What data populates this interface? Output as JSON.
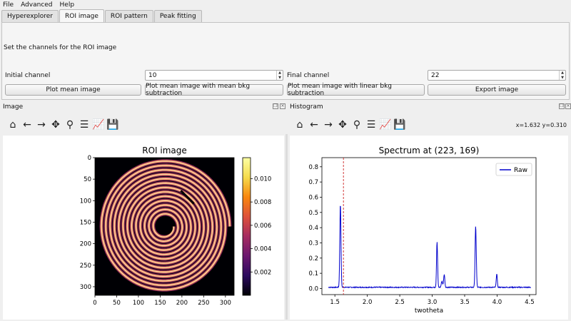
{
  "menu": {
    "items": [
      "File",
      "Advanced",
      "Help"
    ]
  },
  "tabs": [
    {
      "label": "Hyperexplorer",
      "active": false
    },
    {
      "label": "ROI image",
      "active": true
    },
    {
      "label": "ROI pattern",
      "active": false
    },
    {
      "label": "Peak fitting",
      "active": false
    }
  ],
  "roi_panel": {
    "instruction": "Set the channels for the ROI image",
    "initial_label": "Initial channel",
    "initial_value": "10",
    "final_label": "Final channel",
    "final_value": "22",
    "buttons": [
      "Plot mean image",
      "Plot mean image with mean bkg subtraction",
      "Plot mean image with linear bkg subtraction",
      "Export image"
    ]
  },
  "image_dock": {
    "title": "Image"
  },
  "histogram_dock": {
    "title": "Histogram",
    "coords": "x=1.632 y=0.310"
  },
  "toolbar_icons": [
    "home-icon",
    "back-icon",
    "forward-icon",
    "pan-icon",
    "zoom-icon",
    "configure-icon",
    "axes-icon",
    "save-icon"
  ],
  "colors": {
    "colormap": [
      "#000004",
      "#2c0a5e",
      "#6b176e",
      "#a52c60",
      "#dd513a",
      "#f8870e",
      "#f5db4b",
      "#fcffa4"
    ],
    "raw_line": "#0000cc",
    "cursor_line": "#cc2222"
  },
  "chart_data": [
    {
      "type": "heatmap",
      "title": "ROI image",
      "xlabel": "",
      "ylabel": "",
      "xlim": [
        0,
        320
      ],
      "ylim": [
        320,
        0
      ],
      "xticks": [
        0,
        50,
        100,
        150,
        200,
        250,
        300
      ],
      "yticks": [
        0,
        50,
        100,
        150,
        200,
        250,
        300
      ],
      "colorbar": {
        "range": [
          0,
          0.0118
        ],
        "ticks": [
          "0.002",
          "0.004",
          "0.006",
          "0.008",
          "0.010"
        ],
        "tick_values": [
          0.002,
          0.004,
          0.006,
          0.008,
          0.01
        ]
      },
      "description_values": {
        "spiral_center": [
          160,
          160
        ],
        "spiral_turns": 13,
        "outer_radius": 150
      }
    },
    {
      "type": "line",
      "title": "Spectrum at (223, 169)",
      "xlabel": "twotheta",
      "ylabel": "",
      "xlim": [
        1.3,
        4.6
      ],
      "ylim": [
        -0.04,
        0.86
      ],
      "xticks": [
        "1.5",
        "2.0",
        "2.5",
        "3.0",
        "3.5",
        "4.0",
        "4.5"
      ],
      "xtick_values": [
        1.5,
        2.0,
        2.5,
        3.0,
        3.5,
        4.0,
        4.5
      ],
      "yticks": [
        "0.0",
        "0.1",
        "0.2",
        "0.3",
        "0.4",
        "0.5",
        "0.6",
        "0.7",
        "0.8"
      ],
      "ytick_values": [
        0.0,
        0.1,
        0.2,
        0.3,
        0.4,
        0.5,
        0.6,
        0.7,
        0.8
      ],
      "legend": {
        "position": "top-right",
        "entries": [
          "Raw"
        ]
      },
      "cursor_x": 1.632,
      "x_range": [
        1.4,
        4.52
      ],
      "baseline": 0.008,
      "peaks": [
        {
          "x": 1.585,
          "height": 0.55,
          "width": 0.009
        },
        {
          "x": 3.075,
          "height": 0.3,
          "width": 0.008
        },
        {
          "x": 3.15,
          "height": 0.04,
          "width": 0.01
        },
        {
          "x": 3.185,
          "height": 0.085,
          "width": 0.009
        },
        {
          "x": 3.67,
          "height": 0.4,
          "width": 0.009
        },
        {
          "x": 3.995,
          "height": 0.09,
          "width": 0.008
        }
      ]
    }
  ]
}
